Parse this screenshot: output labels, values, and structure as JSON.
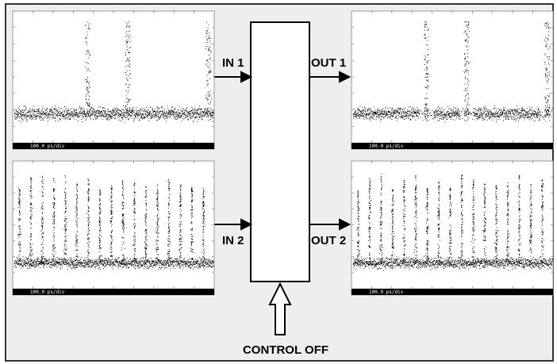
{
  "scopes": [
    {
      "scale": "100.0 ps/div"
    },
    {
      "scale": "100.0 ps/div"
    },
    {
      "scale": "100.0 ps/div"
    },
    {
      "scale": "100.0 ps/div"
    }
  ],
  "inputs": [
    {
      "label": "IN 1"
    },
    {
      "label": "IN 2"
    }
  ],
  "outputs": [
    {
      "label": "OUT 1"
    },
    {
      "label": "OUT 2"
    }
  ],
  "control": {
    "label": "CONTROL OFF"
  }
}
